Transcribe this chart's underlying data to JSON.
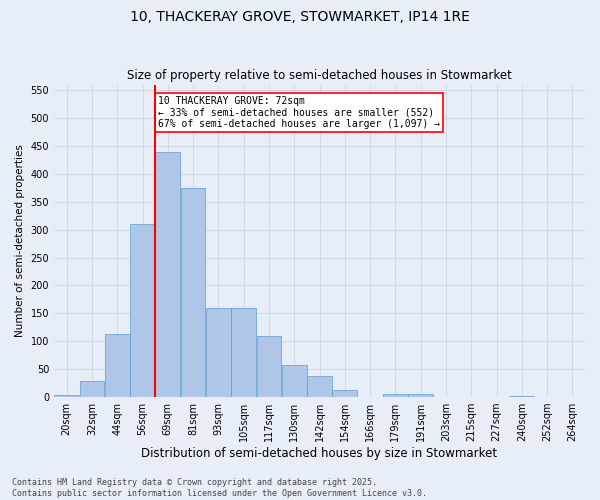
{
  "title": "10, THACKERAY GROVE, STOWMARKET, IP14 1RE",
  "subtitle": "Size of property relative to semi-detached houses in Stowmarket",
  "xlabel": "Distribution of semi-detached houses by size in Stowmarket",
  "ylabel": "Number of semi-detached properties",
  "bins": [
    "20sqm",
    "32sqm",
    "44sqm",
    "56sqm",
    "69sqm",
    "81sqm",
    "93sqm",
    "105sqm",
    "117sqm",
    "130sqm",
    "142sqm",
    "154sqm",
    "166sqm",
    "179sqm",
    "191sqm",
    "203sqm",
    "215sqm",
    "227sqm",
    "240sqm",
    "252sqm",
    "264sqm"
  ],
  "values": [
    3,
    28,
    113,
    311,
    440,
    375,
    160,
    160,
    110,
    58,
    37,
    13,
    0,
    6,
    5,
    0,
    0,
    0,
    2,
    0,
    0
  ],
  "bar_color": "#aec6e8",
  "bar_edge_color": "#5a9fd4",
  "property_bin_index": 4,
  "property_label": "72sqm",
  "property_line_color": "red",
  "annotation_text": "10 THACKERAY GROVE: 72sqm\n← 33% of semi-detached houses are smaller (552)\n67% of semi-detached houses are larger (1,097) →",
  "annotation_box_color": "white",
  "annotation_box_edge_color": "red",
  "ylim": [
    0,
    560
  ],
  "yticks": [
    0,
    50,
    100,
    150,
    200,
    250,
    300,
    350,
    400,
    450,
    500,
    550
  ],
  "bg_color": "#e8eef8",
  "grid_color": "#c8d0e0",
  "footer": "Contains HM Land Registry data © Crown copyright and database right 2025.\nContains public sector information licensed under the Open Government Licence v3.0.",
  "title_fontsize": 10,
  "subtitle_fontsize": 8.5,
  "xlabel_fontsize": 8.5,
  "ylabel_fontsize": 7.5,
  "tick_fontsize": 7,
  "footer_fontsize": 6,
  "annotation_fontsize": 7
}
